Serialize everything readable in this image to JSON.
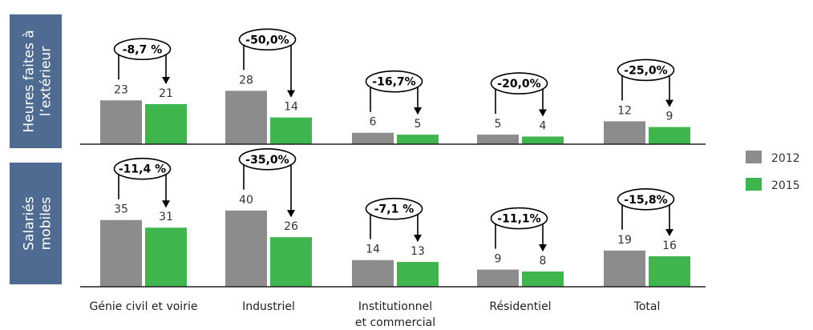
{
  "chart_data": [
    {
      "type": "bar",
      "row_label": [
        "Heures faites à",
        "l’extérieur"
      ],
      "categories": [
        "Génie civil et voirie",
        "Industriel",
        "Institutionnel et commercial",
        "Résidentiel",
        "Total"
      ],
      "series": [
        {
          "name": "2012",
          "values": [
            23,
            28,
            6,
            5,
            12
          ]
        },
        {
          "name": "2015",
          "values": [
            21,
            14,
            5,
            4,
            9
          ]
        }
      ],
      "changes": [
        "-8,7 %",
        "-50,0%",
        "-16,7%",
        "-20,0%",
        "-25,0%"
      ],
      "ylim": [
        0,
        40
      ]
    },
    {
      "type": "bar",
      "row_label": [
        "Salariés",
        "mobiles"
      ],
      "categories": [
        "Génie civil et voirie",
        "Industriel",
        "Institutionnel et commercial",
        "Résidentiel",
        "Total"
      ],
      "series": [
        {
          "name": "2012",
          "values": [
            35,
            40,
            14,
            9,
            19
          ]
        },
        {
          "name": "2015",
          "values": [
            31,
            26,
            13,
            8,
            16
          ]
        }
      ],
      "changes": [
        "-11,4 %",
        "-35,0%",
        "-7,1 %",
        "-11,1%",
        "-15,8%"
      ],
      "ylim": [
        0,
        40
      ]
    }
  ],
  "category_labels": [
    [
      "Génie civil et voirie"
    ],
    [
      "Industriel"
    ],
    [
      "Institutionnel",
      "et commercial"
    ],
    [
      "Résidentiel"
    ],
    [
      "Total"
    ]
  ],
  "legend": [
    {
      "label": "2012",
      "color": "#8c8c8c"
    },
    {
      "label": "2015",
      "color": "#3fb54d"
    }
  ],
  "colors": {
    "panel": "#4f6b91",
    "bar_2012": "#8c8c8c",
    "bar_2015": "#3fb54d",
    "axis": "#222222"
  }
}
